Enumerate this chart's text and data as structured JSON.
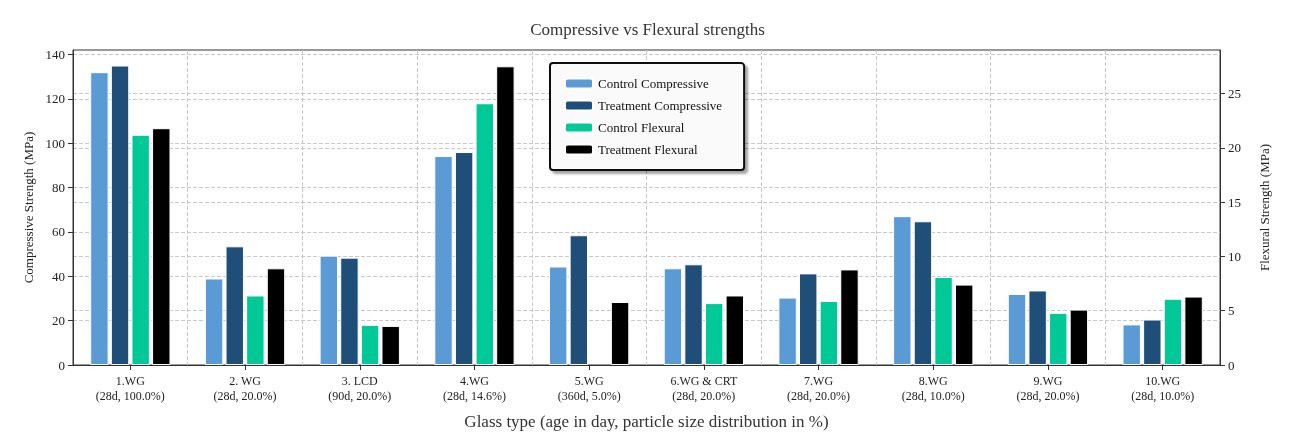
{
  "chart_data": {
    "type": "bar",
    "title": "Compressive vs Flexural strengths",
    "xlabel": "Glass type (age in day, particle size distribution in %)",
    "ylabel": "Compressive Strength (MPa)",
    "y2label": "Flexural Strength (MPa)",
    "categories": [
      "1.WG\n(28d, 100.0%)",
      "2. WG\n(28d, 20.0%)",
      "3. LCD\n(90d, 20.0%)",
      "4.WG\n(28d, 14.6%)",
      "5.WG\n(360d, 5.0%)",
      "6.WG & CRT\n(28d, 20.0%)",
      "7.WG\n(28d, 20.0%)",
      "8.WG\n(28d, 10.0%)",
      "9.WG\n(28d, 20.0%)",
      "10.WG\n(28d, 10.0%)"
    ],
    "series": [
      {
        "name": "Control Compressive",
        "color": "#5b9bd5",
        "values": [
          132,
          39,
          49.3,
          94.2,
          44.4,
          43.6,
          30.4,
          67.1,
          32,
          18.3
        ]
      },
      {
        "name": "Treatment Compressive",
        "color": "#1f4e79",
        "values": [
          135,
          53.5,
          48.4,
          96,
          58.5,
          45.4,
          41.3,
          64.8,
          33.6,
          20.5
        ]
      },
      {
        "name": "Control Flexural",
        "color": "#00c896",
        "axis": "y2",
        "values": [
          21.2,
          6.4,
          3.7,
          24.1,
          null,
          5.7,
          5.9,
          8.1,
          4.8,
          6.1
        ]
      },
      {
        "name": "Treatment Flexural",
        "color": "#000000",
        "axis": "y2",
        "values": [
          21.8,
          8.9,
          3.6,
          27.5,
          5.8,
          6.4,
          8.8,
          7.4,
          5.1,
          6.3
        ]
      }
    ],
    "ylim": [
      0,
      142
    ],
    "yticks": [
      0,
      20,
      40,
      60,
      80,
      100,
      120,
      140
    ],
    "y2lim": [
      0,
      29
    ],
    "y2ticks": [
      0,
      5,
      10,
      15,
      20,
      25
    ],
    "grid": true,
    "legend": "top"
  }
}
